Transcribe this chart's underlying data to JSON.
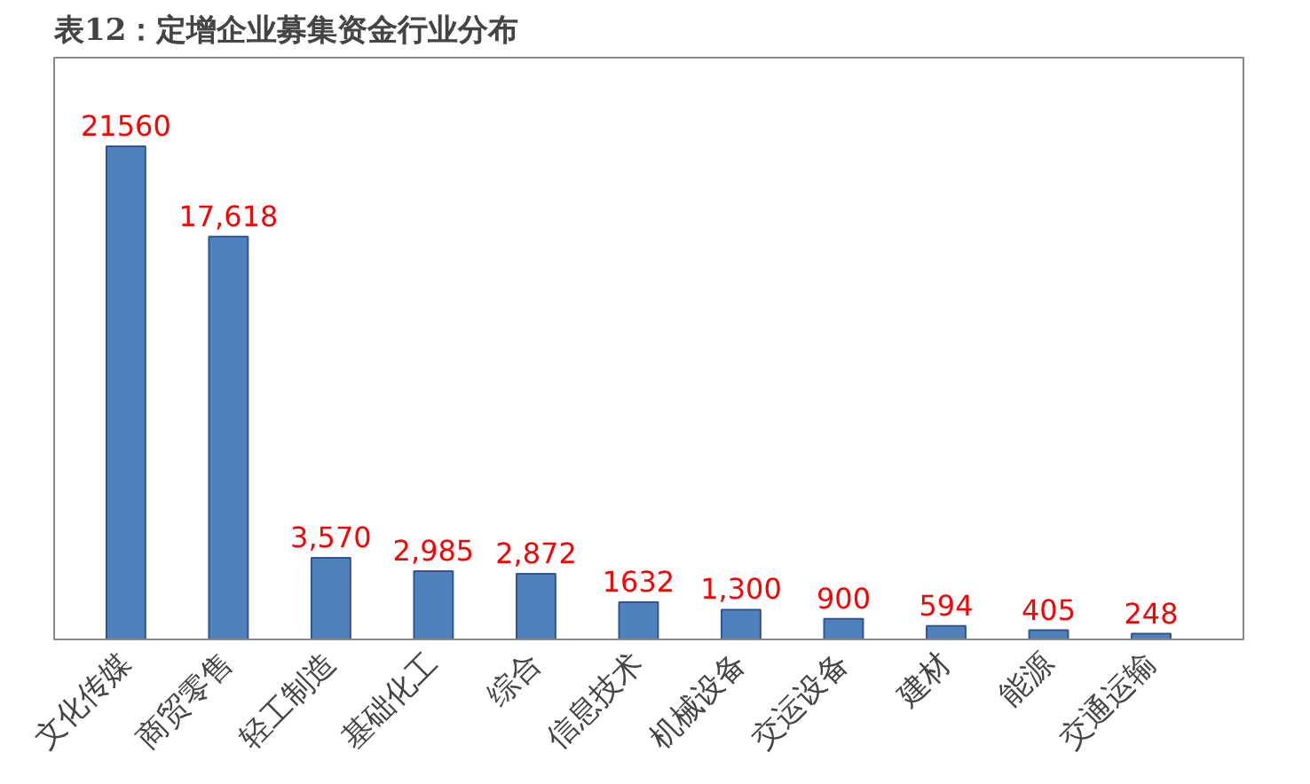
{
  "chart_data": {
    "type": "bar",
    "title": "表12：定增企业募集资金行业分布",
    "categories": [
      "文化传媒",
      "商贸零售",
      "轻工制造",
      "基础化工",
      "综合",
      "信息技术",
      "机械设备",
      "交运设备",
      "建材",
      "能源",
      "交通运输"
    ],
    "values": [
      21560,
      17618,
      3570,
      2985,
      2872,
      1632,
      1300,
      900,
      594,
      405,
      248
    ],
    "value_labels": [
      "21560",
      "17,618",
      "3,570",
      "2,985",
      "2,872",
      "1632",
      "1,300",
      "900",
      "594",
      "405",
      "248"
    ],
    "color": "#4f81bd",
    "grid": false
  }
}
